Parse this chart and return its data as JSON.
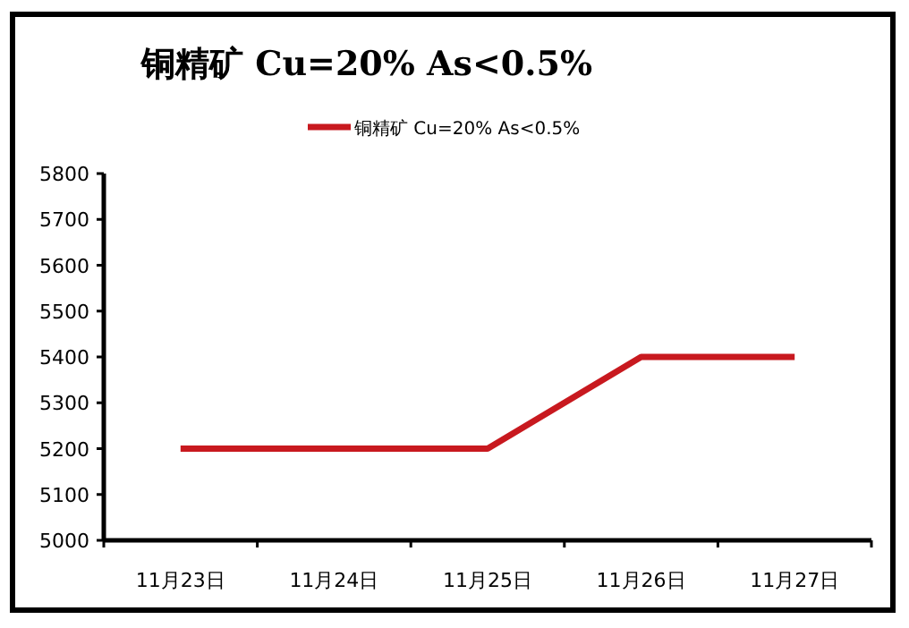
{
  "chart_data": {
    "type": "line",
    "title": "铜精矿 Cu=20% As<0.5%",
    "categories": [
      "11月23日",
      "11月24日",
      "11月25日",
      "11月26日",
      "11月27日"
    ],
    "series": [
      {
        "name": "铜精矿 Cu=20% As<0.5%",
        "color": "#c8191f",
        "values": [
          5200,
          5200,
          5200,
          5400,
          5400
        ]
      }
    ],
    "ylim": [
      5000,
      5800
    ],
    "yticks": [
      5000,
      5100,
      5200,
      5300,
      5400,
      5500,
      5600,
      5700,
      5800
    ],
    "grid": false,
    "legend": "top",
    "marker": "none",
    "line_style": "solid"
  }
}
